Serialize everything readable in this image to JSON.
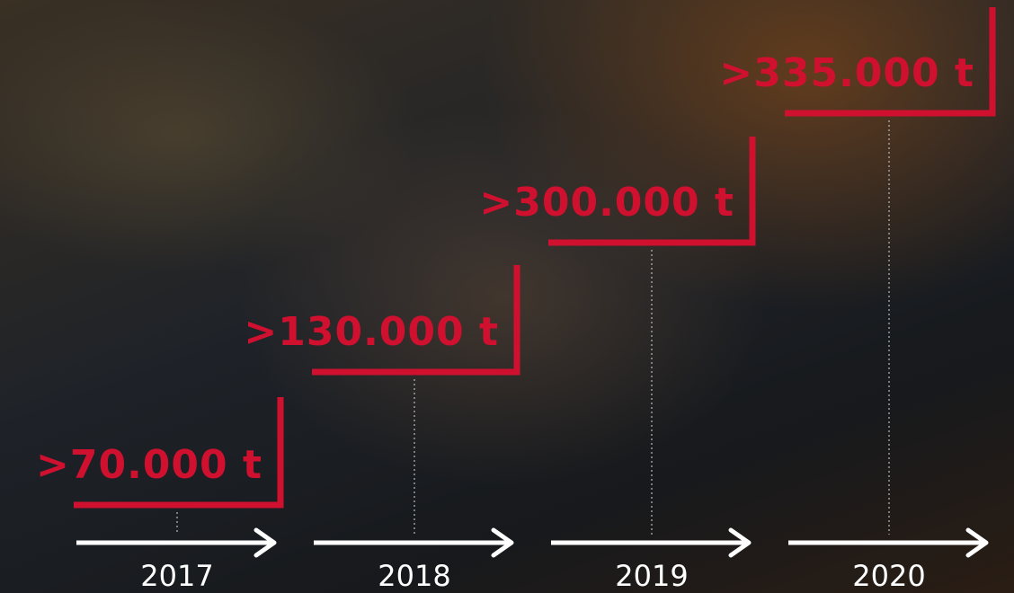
{
  "steps": [
    {
      "amount": ">70.000 t",
      "year": "2017"
    },
    {
      "amount": ">130.000 t",
      "year": "2018"
    },
    {
      "amount": ">300.000 t",
      "year": "2019"
    },
    {
      "amount": ">335.000 t",
      "year": "2020"
    }
  ]
}
